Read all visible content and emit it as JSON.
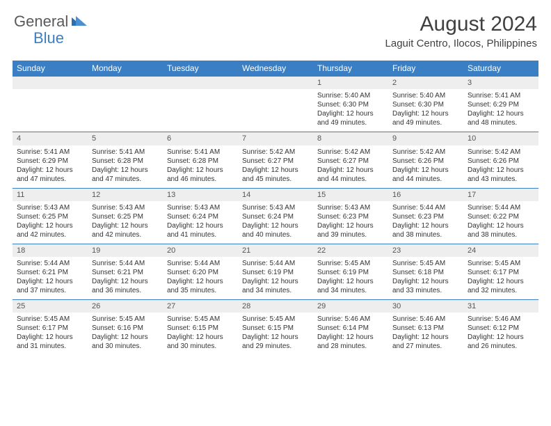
{
  "logo": {
    "text1": "General",
    "text2": "Blue"
  },
  "title": "August 2024",
  "location": "Laguit Centro, Ilocos, Philippines",
  "colors": {
    "header_bg": "#3a7fc4",
    "header_text": "#ffffff",
    "daynum_bg": "#eeeeee",
    "border": "#3a7fc4",
    "body_text": "#333333",
    "logo_gray": "#5a5a5a",
    "logo_blue": "#3a7fc4"
  },
  "weekdays": [
    "Sunday",
    "Monday",
    "Tuesday",
    "Wednesday",
    "Thursday",
    "Friday",
    "Saturday"
  ],
  "weeks": [
    [
      null,
      null,
      null,
      null,
      {
        "n": "1",
        "sr": "5:40 AM",
        "ss": "6:30 PM",
        "d1": "12 hours",
        "d2": "and 49 minutes."
      },
      {
        "n": "2",
        "sr": "5:40 AM",
        "ss": "6:30 PM",
        "d1": "12 hours",
        "d2": "and 49 minutes."
      },
      {
        "n": "3",
        "sr": "5:41 AM",
        "ss": "6:29 PM",
        "d1": "12 hours",
        "d2": "and 48 minutes."
      }
    ],
    [
      {
        "n": "4",
        "sr": "5:41 AM",
        "ss": "6:29 PM",
        "d1": "12 hours",
        "d2": "and 47 minutes."
      },
      {
        "n": "5",
        "sr": "5:41 AM",
        "ss": "6:28 PM",
        "d1": "12 hours",
        "d2": "and 47 minutes."
      },
      {
        "n": "6",
        "sr": "5:41 AM",
        "ss": "6:28 PM",
        "d1": "12 hours",
        "d2": "and 46 minutes."
      },
      {
        "n": "7",
        "sr": "5:42 AM",
        "ss": "6:27 PM",
        "d1": "12 hours",
        "d2": "and 45 minutes."
      },
      {
        "n": "8",
        "sr": "5:42 AM",
        "ss": "6:27 PM",
        "d1": "12 hours",
        "d2": "and 44 minutes."
      },
      {
        "n": "9",
        "sr": "5:42 AM",
        "ss": "6:26 PM",
        "d1": "12 hours",
        "d2": "and 44 minutes."
      },
      {
        "n": "10",
        "sr": "5:42 AM",
        "ss": "6:26 PM",
        "d1": "12 hours",
        "d2": "and 43 minutes."
      }
    ],
    [
      {
        "n": "11",
        "sr": "5:43 AM",
        "ss": "6:25 PM",
        "d1": "12 hours",
        "d2": "and 42 minutes."
      },
      {
        "n": "12",
        "sr": "5:43 AM",
        "ss": "6:25 PM",
        "d1": "12 hours",
        "d2": "and 42 minutes."
      },
      {
        "n": "13",
        "sr": "5:43 AM",
        "ss": "6:24 PM",
        "d1": "12 hours",
        "d2": "and 41 minutes."
      },
      {
        "n": "14",
        "sr": "5:43 AM",
        "ss": "6:24 PM",
        "d1": "12 hours",
        "d2": "and 40 minutes."
      },
      {
        "n": "15",
        "sr": "5:43 AM",
        "ss": "6:23 PM",
        "d1": "12 hours",
        "d2": "and 39 minutes."
      },
      {
        "n": "16",
        "sr": "5:44 AM",
        "ss": "6:23 PM",
        "d1": "12 hours",
        "d2": "and 38 minutes."
      },
      {
        "n": "17",
        "sr": "5:44 AM",
        "ss": "6:22 PM",
        "d1": "12 hours",
        "d2": "and 38 minutes."
      }
    ],
    [
      {
        "n": "18",
        "sr": "5:44 AM",
        "ss": "6:21 PM",
        "d1": "12 hours",
        "d2": "and 37 minutes."
      },
      {
        "n": "19",
        "sr": "5:44 AM",
        "ss": "6:21 PM",
        "d1": "12 hours",
        "d2": "and 36 minutes."
      },
      {
        "n": "20",
        "sr": "5:44 AM",
        "ss": "6:20 PM",
        "d1": "12 hours",
        "d2": "and 35 minutes."
      },
      {
        "n": "21",
        "sr": "5:44 AM",
        "ss": "6:19 PM",
        "d1": "12 hours",
        "d2": "and 34 minutes."
      },
      {
        "n": "22",
        "sr": "5:45 AM",
        "ss": "6:19 PM",
        "d1": "12 hours",
        "d2": "and 34 minutes."
      },
      {
        "n": "23",
        "sr": "5:45 AM",
        "ss": "6:18 PM",
        "d1": "12 hours",
        "d2": "and 33 minutes."
      },
      {
        "n": "24",
        "sr": "5:45 AM",
        "ss": "6:17 PM",
        "d1": "12 hours",
        "d2": "and 32 minutes."
      }
    ],
    [
      {
        "n": "25",
        "sr": "5:45 AM",
        "ss": "6:17 PM",
        "d1": "12 hours",
        "d2": "and 31 minutes."
      },
      {
        "n": "26",
        "sr": "5:45 AM",
        "ss": "6:16 PM",
        "d1": "12 hours",
        "d2": "and 30 minutes."
      },
      {
        "n": "27",
        "sr": "5:45 AM",
        "ss": "6:15 PM",
        "d1": "12 hours",
        "d2": "and 30 minutes."
      },
      {
        "n": "28",
        "sr": "5:45 AM",
        "ss": "6:15 PM",
        "d1": "12 hours",
        "d2": "and 29 minutes."
      },
      {
        "n": "29",
        "sr": "5:46 AM",
        "ss": "6:14 PM",
        "d1": "12 hours",
        "d2": "and 28 minutes."
      },
      {
        "n": "30",
        "sr": "5:46 AM",
        "ss": "6:13 PM",
        "d1": "12 hours",
        "d2": "and 27 minutes."
      },
      {
        "n": "31",
        "sr": "5:46 AM",
        "ss": "6:12 PM",
        "d1": "12 hours",
        "d2": "and 26 minutes."
      }
    ]
  ],
  "labels": {
    "sunrise": "Sunrise: ",
    "sunset": "Sunset: ",
    "daylight": "Daylight: "
  }
}
